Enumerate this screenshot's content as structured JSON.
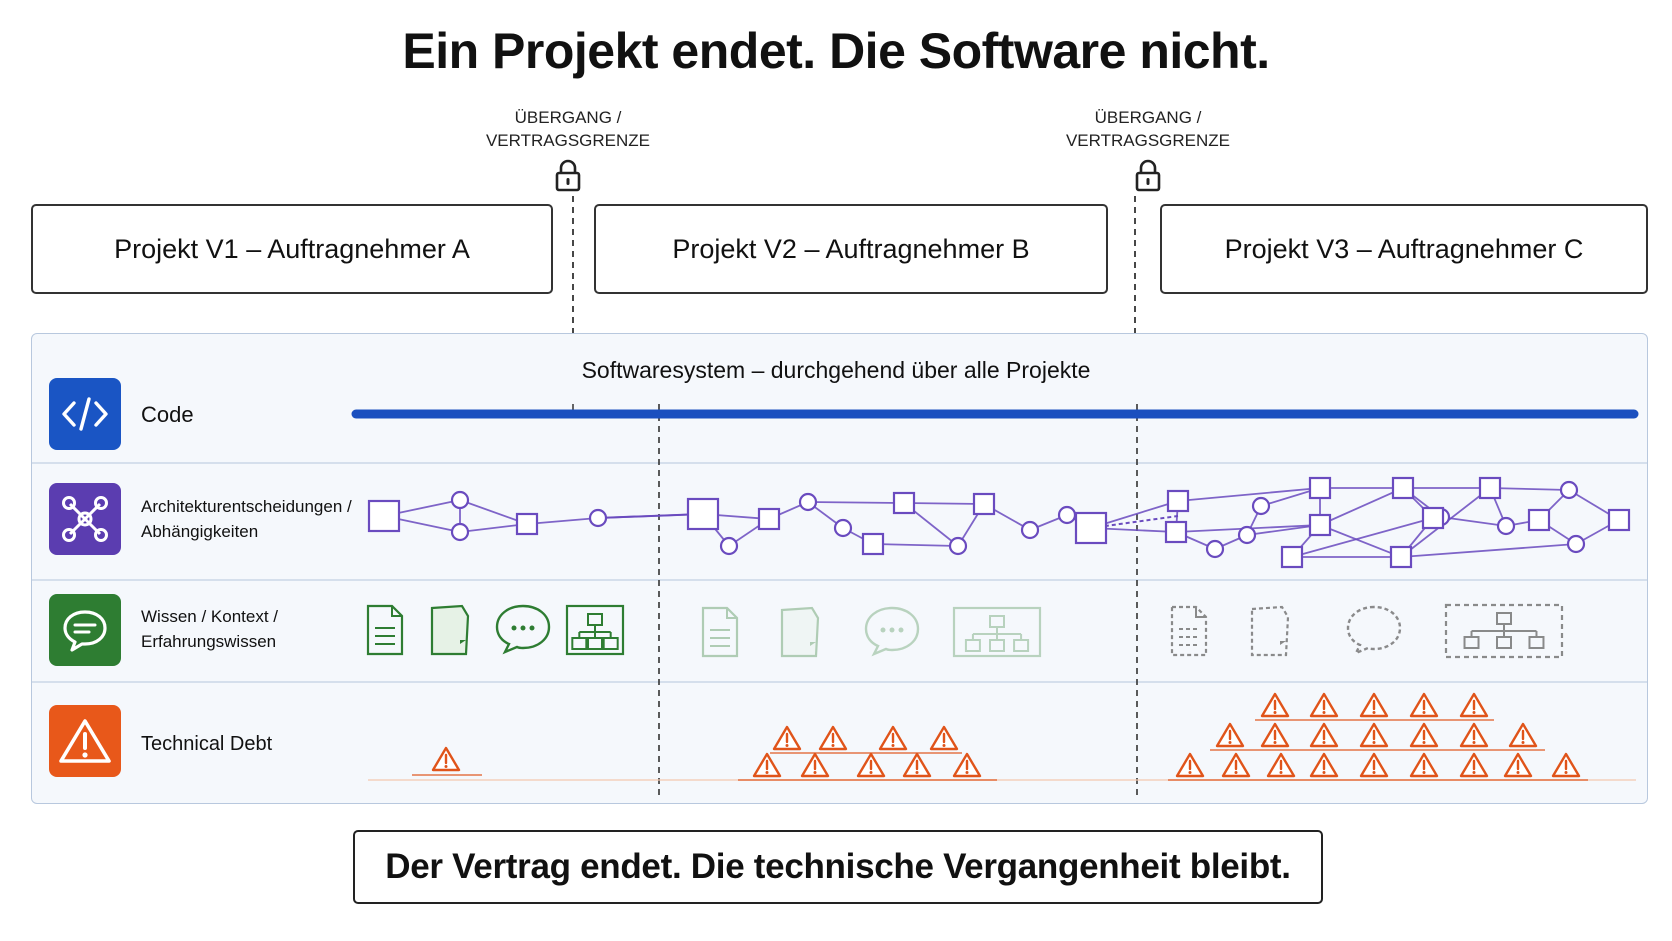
{
  "title": "Ein Projekt endet. Die Software nicht.",
  "boundaries": [
    {
      "line1": "ÜBERGANG /",
      "line2": "VERTRAGSGRENZE"
    },
    {
      "line1": "ÜBERGANG /",
      "line2": "VERTRAGSGRENZE"
    }
  ],
  "projects": [
    {
      "label": "Projekt V1 – Auftragnehmer A"
    },
    {
      "label": "Projekt V2 – Auftragnehmer B"
    },
    {
      "label": "Projekt V3 – Auftragnehmer C"
    }
  ],
  "system": {
    "label": "Softwaresystem – durchgehend über alle Projekte"
  },
  "rows": [
    {
      "icon": "code-icon",
      "color": "#1a55c4",
      "line1": "Code",
      "line2": ""
    },
    {
      "icon": "network-icon",
      "color": "#5b3db0",
      "line1": "Architekturentscheidungen /",
      "line2": "Abhängigkeiten"
    },
    {
      "icon": "chat-icon",
      "color": "#2e7d32",
      "line1": "Wissen / Kontext /",
      "line2": "Erfahrungswissen"
    },
    {
      "icon": "warning-icon",
      "color": "#e8581a",
      "line1": "Technical Debt",
      "line2": ""
    }
  ],
  "colors": {
    "code_line": "#1a4fbf",
    "architecture": "#6a4bbf",
    "knowledge": "#2e7d32",
    "debt": "#e0541a"
  },
  "footer": "Der Vertrag endet. Die technische Vergangenheit bleibt."
}
